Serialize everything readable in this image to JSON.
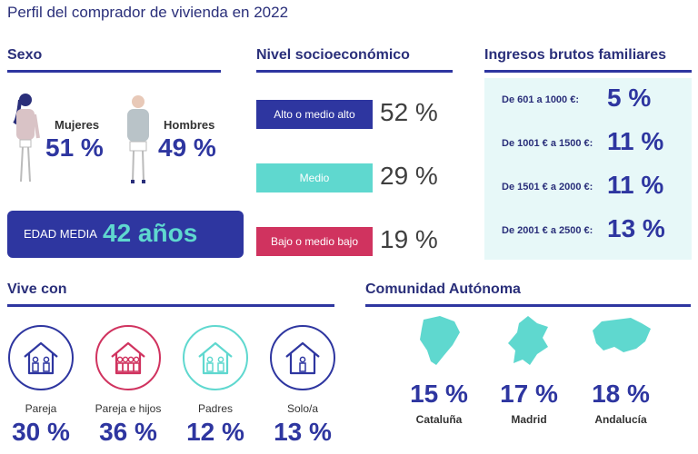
{
  "title": "Perfil del comprador de vivienda en 2022",
  "sexo": {
    "heading": "Sexo",
    "mujeres_label": "Mujeres",
    "mujeres_value": "51 %",
    "hombres_label": "Hombres",
    "hombres_value": "49 %",
    "edad_label": "EDAD MEDIA",
    "edad_value": "42 años"
  },
  "nivel": {
    "heading": "Nivel socioeconómico",
    "items": [
      {
        "label": "Alto o medio alto",
        "value": "52 %",
        "color": "#2e36a0"
      },
      {
        "label": "Medio",
        "value": "29 %",
        "color": "#5fd8cf"
      },
      {
        "label": "Bajo o medio bajo",
        "value": "19 %",
        "color": "#d0335f"
      }
    ]
  },
  "ingresos": {
    "heading": "Ingresos brutos familiares",
    "items": [
      {
        "label": "De 601 a 1000 €:",
        "value": "5 %"
      },
      {
        "label": "De 1001 € a 1500 €:",
        "value": "11 %"
      },
      {
        "label": "De 1501 € a 2000 €:",
        "value": "11 %"
      },
      {
        "label": "De 2001 € a 2500 €:",
        "value": "13 %"
      }
    ]
  },
  "vive": {
    "heading": "Vive con",
    "items": [
      {
        "label": "Pareja",
        "value": "30 %",
        "color": "#2e36a0",
        "icon": "couple-house-icon"
      },
      {
        "label": "Pareja e hijos",
        "value": "36 %",
        "color": "#d0335f",
        "icon": "family-house-icon"
      },
      {
        "label": "Padres",
        "value": "12 %",
        "color": "#5fd8cf",
        "icon": "parents-house-icon"
      },
      {
        "label": "Solo/a",
        "value": "13 %",
        "color": "#2e36a0",
        "icon": "single-house-icon"
      }
    ]
  },
  "comunidad": {
    "heading": "Comunidad Autónoma",
    "items": [
      {
        "label": "Cataluña",
        "value": "15 %",
        "icon": "cataluna-map-icon"
      },
      {
        "label": "Madrid",
        "value": "17 %",
        "icon": "madrid-map-icon"
      },
      {
        "label": "Andalucía",
        "value": "18 %",
        "icon": "andalucia-map-icon"
      }
    ],
    "map_color": "#5fd8cf"
  }
}
